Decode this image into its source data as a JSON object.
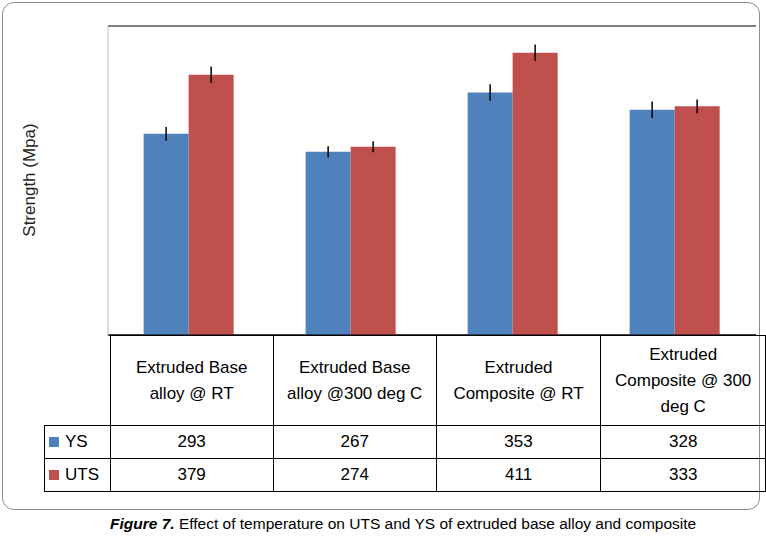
{
  "chart_data": {
    "type": "bar",
    "title": "Figure 7. Effect of temperature on UTS and YS of extruded base alloy and composite",
    "y_label": "Strength (Mpa)",
    "categories": [
      "Extruded Base alloy @ RT",
      "Extruded Base alloy @300 deg C",
      "Extruded Composite @ RT",
      "Extruded Composite @ 300 deg C"
    ],
    "series": [
      {
        "name": "YS",
        "color": "#4f81bd",
        "values": [
          293,
          267,
          353,
          328
        ],
        "errors": [
          10,
          8,
          12,
          12
        ]
      },
      {
        "name": "UTS",
        "color": "#c0504d",
        "values": [
          379,
          274,
          411,
          333
        ],
        "errors": [
          12,
          8,
          12,
          10
        ]
      }
    ],
    "ylim": [
      0,
      450
    ],
    "yticks": [
      0,
      50,
      100,
      150,
      200,
      250,
      300,
      350,
      400,
      450
    ],
    "grid": true,
    "tick_labels": false
  }
}
